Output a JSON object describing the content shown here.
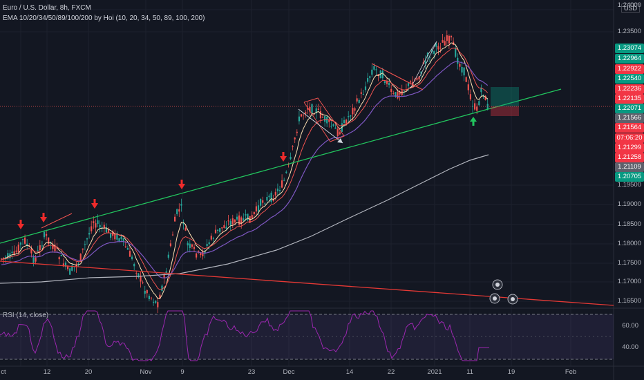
{
  "header": {
    "symbol_line": "Euro / U.S. Dollar, 8h, FXCM",
    "indicator_line": "EMA 10/20/34/50/89/100/200 by Hoi (10, 20, 34, 50, 89, 100, 200)"
  },
  "price_axis": {
    "currency": "USD",
    "ticks": [
      "1.24000",
      "1.23500",
      "1.19500",
      "1.19000",
      "1.18500",
      "1.18000",
      "1.17500",
      "1.17000",
      "1.16500"
    ],
    "tags": [
      {
        "text": "1.23074",
        "color": "#089981"
      },
      {
        "text": "1.22964",
        "color": "#089981"
      },
      {
        "text": "1.22922",
        "color": "#f23645"
      },
      {
        "text": "1.22540",
        "color": "#089981"
      },
      {
        "text": "1.22236",
        "color": "#f23645"
      },
      {
        "text": "1.22135",
        "color": "#f23645"
      },
      {
        "text": "1.22071",
        "color": "#089981"
      },
      {
        "text": "1.21566",
        "color": "#5d606b"
      },
      {
        "text": "1.21564",
        "color": "#f23645"
      },
      {
        "text": "07:06:20",
        "color": "#f23645"
      },
      {
        "text": "1.21299",
        "color": "#f23645"
      },
      {
        "text": "1.21258",
        "color": "#f23645"
      },
      {
        "text": "1.21109",
        "color": "#5d606b"
      },
      {
        "text": "1.20705",
        "color": "#089981"
      }
    ]
  },
  "time_axis": {
    "labels": [
      "ct",
      "12",
      "20",
      "Nov",
      "9",
      "23",
      "Dec",
      "14",
      "22",
      "2021",
      "11",
      "19",
      "Feb"
    ]
  },
  "rsi": {
    "legend": "RSI (14, close)",
    "ticks": [
      "60.00",
      "40.00"
    ]
  },
  "colors": {
    "background": "#131722",
    "up": "#26a69a",
    "down": "#ef5350",
    "trendline_green": "#22c55e",
    "trendline_red": "#e53935",
    "ema200": "#b2b5be",
    "rsi_line": "#9c27b0"
  },
  "markers": {
    "down_arrows": 5,
    "up_arrows": 1
  }
}
